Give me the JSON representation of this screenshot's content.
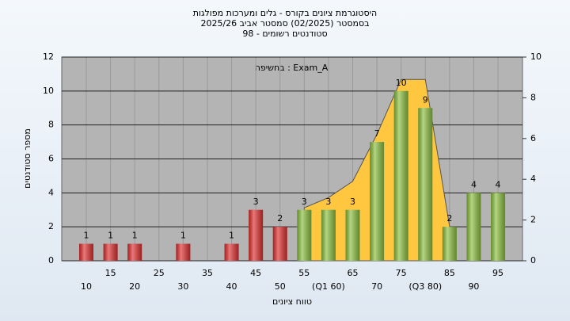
{
  "chart_data": {
    "type": "bar",
    "title": [
      "היסטוגרמת ציונים בקורס - גלים ומערכות מפולגות",
      "בסמסטר  (02/2025)  סמסטר אביב 2025/26",
      "סטודנטים רשומים - 98"
    ],
    "annotation": "בחשיפה : Exam_A",
    "x_label": "טווח ציונים",
    "y_label": "מספר סטודנטים",
    "categories": [
      "10",
      "15",
      "20",
      "25",
      "30",
      "35",
      "40",
      "45",
      "50",
      "55",
      "(Q1 60)",
      "65",
      "70",
      "75",
      "(Q3 80)",
      "85",
      "90",
      "95"
    ],
    "values": [
      1,
      1,
      1,
      0,
      1,
      0,
      1,
      3,
      2,
      3,
      3,
      3,
      7,
      10,
      9,
      2,
      4,
      4
    ],
    "colors": [
      "#e03030",
      "#e03030",
      "#e03030",
      "#e03030",
      "#e03030",
      "#e03030",
      "#e03030",
      "#e03030",
      "#e03030",
      "#8cc040",
      "#8cc040",
      "#8cc040",
      "#8cc040",
      "#8cc040",
      "#8cc040",
      "#8cc040",
      "#8cc040",
      "#8cc040"
    ],
    "area": {
      "color": "#ffc640",
      "axis": "y2",
      "values": [
        null,
        null,
        null,
        null,
        null,
        null,
        null,
        null,
        null,
        2.6,
        3.1,
        3.9,
        6.2,
        8.9,
        8.9,
        1.7,
        null,
        null
      ]
    },
    "ylim": [
      0,
      12
    ],
    "yticks": [
      0,
      2,
      4,
      6,
      8,
      10,
      12
    ],
    "y2lim": [
      0,
      10
    ],
    "y2ticks": [
      0,
      2,
      4,
      6,
      8,
      10
    ],
    "grid": true
  }
}
